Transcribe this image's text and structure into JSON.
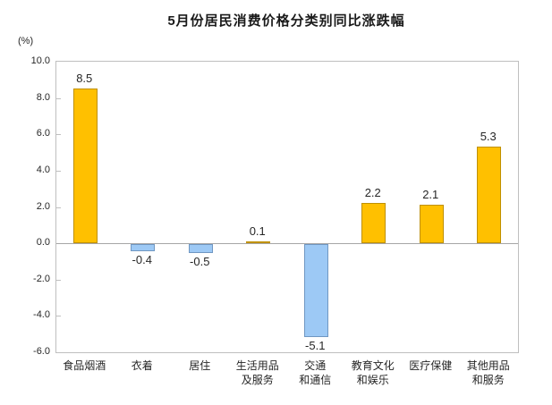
{
  "title": "5月份居民消费价格分类别同比涨跌幅",
  "unit_label": "(%)",
  "chart_data": {
    "type": "bar",
    "title": "5月份居民消费价格分类别同比涨跌幅",
    "xlabel": "",
    "ylabel": "(%)",
    "categories": [
      "食品烟酒",
      "衣着",
      "居住",
      "生活用品及服务",
      "交通和通信",
      "教育文化和娱乐",
      "医疗保健",
      "其他用品和服务"
    ],
    "category_lines": [
      [
        "食品烟酒"
      ],
      [
        "衣着"
      ],
      [
        "居住"
      ],
      [
        "生活用品",
        "及服务"
      ],
      [
        "交通",
        "和通信"
      ],
      [
        "教育文化",
        "和娱乐"
      ],
      [
        "医疗保健"
      ],
      [
        "其他用品",
        "和服务"
      ]
    ],
    "values": [
      8.5,
      -0.4,
      -0.5,
      0.1,
      -5.1,
      2.2,
      2.1,
      5.3
    ],
    "value_labels": [
      "8.5",
      "-0.4",
      "-0.5",
      "0.1",
      "-5.1",
      "2.2",
      "2.1",
      "5.3"
    ],
    "ylim": [
      -6.0,
      10.0
    ],
    "ytick_step": 2.0,
    "yticks": [
      "10.0",
      "8.0",
      "6.0",
      "4.0",
      "2.0",
      "0.0",
      "-2.0",
      "-4.0",
      "-6.0"
    ],
    "grid": false,
    "legend_position": "none",
    "positive_fill": "#FFC000",
    "positive_border": "#BF9000",
    "negative_fill": "#9DC9F5",
    "negative_border": "#7097C2",
    "axis_color": "#BFBFBF",
    "zero_line_color": "#A6A6A6"
  }
}
